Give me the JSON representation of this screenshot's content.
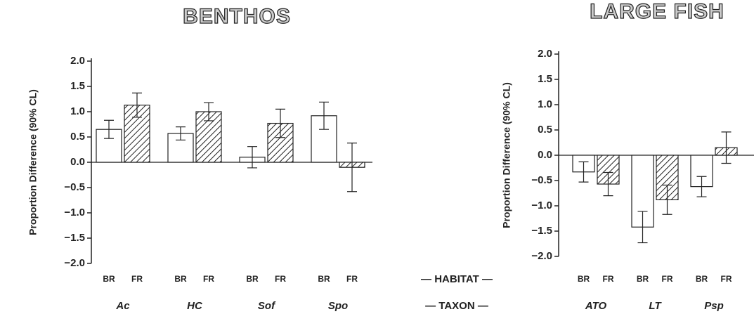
{
  "chart_data": [
    {
      "type": "bar",
      "title": "BENTHOS",
      "y_label": "Proportion Difference (90% CL)",
      "categories": [
        "Ac",
        "HC",
        "Sof",
        "Spo"
      ],
      "series": [
        {
          "name": "BR",
          "color": "#ffffff",
          "hatch": false,
          "values": [
            0.65,
            0.57,
            0.1,
            0.92
          ],
          "errors": [
            0.18,
            0.13,
            0.21,
            0.27
          ]
        },
        {
          "name": "FR",
          "color": "#ffffff",
          "hatch": true,
          "values": [
            1.13,
            1.0,
            0.77,
            -0.1
          ],
          "errors": [
            0.24,
            0.18,
            0.28,
            0.48
          ]
        }
      ],
      "ylim": [
        -2,
        2
      ],
      "yticks": [
        {
          "value": 2,
          "label": "2.0"
        },
        {
          "value": 1.5,
          "label": "1.5"
        },
        {
          "value": 1,
          "label": "1.0"
        },
        {
          "value": 0.5,
          "label": "0.5"
        },
        {
          "value": 0,
          "label": "0.0"
        },
        {
          "value": -0.5,
          "label": "−0.5"
        },
        {
          "value": -1,
          "label": "−1.0"
        },
        {
          "value": -1.5,
          "label": "−1.5"
        },
        {
          "value": -2,
          "label": "−2.0"
        }
      ]
    },
    {
      "type": "bar",
      "title": "LARGE FISH",
      "y_label": "Proportion Difference (90% CL)",
      "categories": [
        "ATO",
        "LT",
        "Psp"
      ],
      "series": [
        {
          "name": "BR",
          "color": "#ffffff",
          "hatch": false,
          "values": [
            -0.33,
            -1.42,
            -0.62
          ],
          "errors": [
            0.2,
            0.31,
            0.2
          ]
        },
        {
          "name": "FR",
          "color": "#ffffff",
          "hatch": true,
          "values": [
            -0.57,
            -0.88,
            0.15
          ],
          "errors": [
            0.23,
            0.29,
            0.31
          ]
        }
      ],
      "ylim": [
        -2,
        2
      ],
      "yticks": [
        {
          "value": 2,
          "label": "2.0"
        },
        {
          "value": 1.5,
          "label": "1.5"
        },
        {
          "value": 1,
          "label": "1.0"
        },
        {
          "value": 0.5,
          "label": "0.5"
        },
        {
          "value": 0,
          "label": "0.0"
        },
        {
          "value": -0.5,
          "label": "−0.5"
        },
        {
          "value": -1,
          "label": "−1.0"
        },
        {
          "value": -1.5,
          "label": "−1.5"
        },
        {
          "value": -2,
          "label": "−2.0"
        }
      ]
    }
  ],
  "row_labels": {
    "habitat": "— HABITAT —",
    "taxon": "— TAXON —"
  }
}
